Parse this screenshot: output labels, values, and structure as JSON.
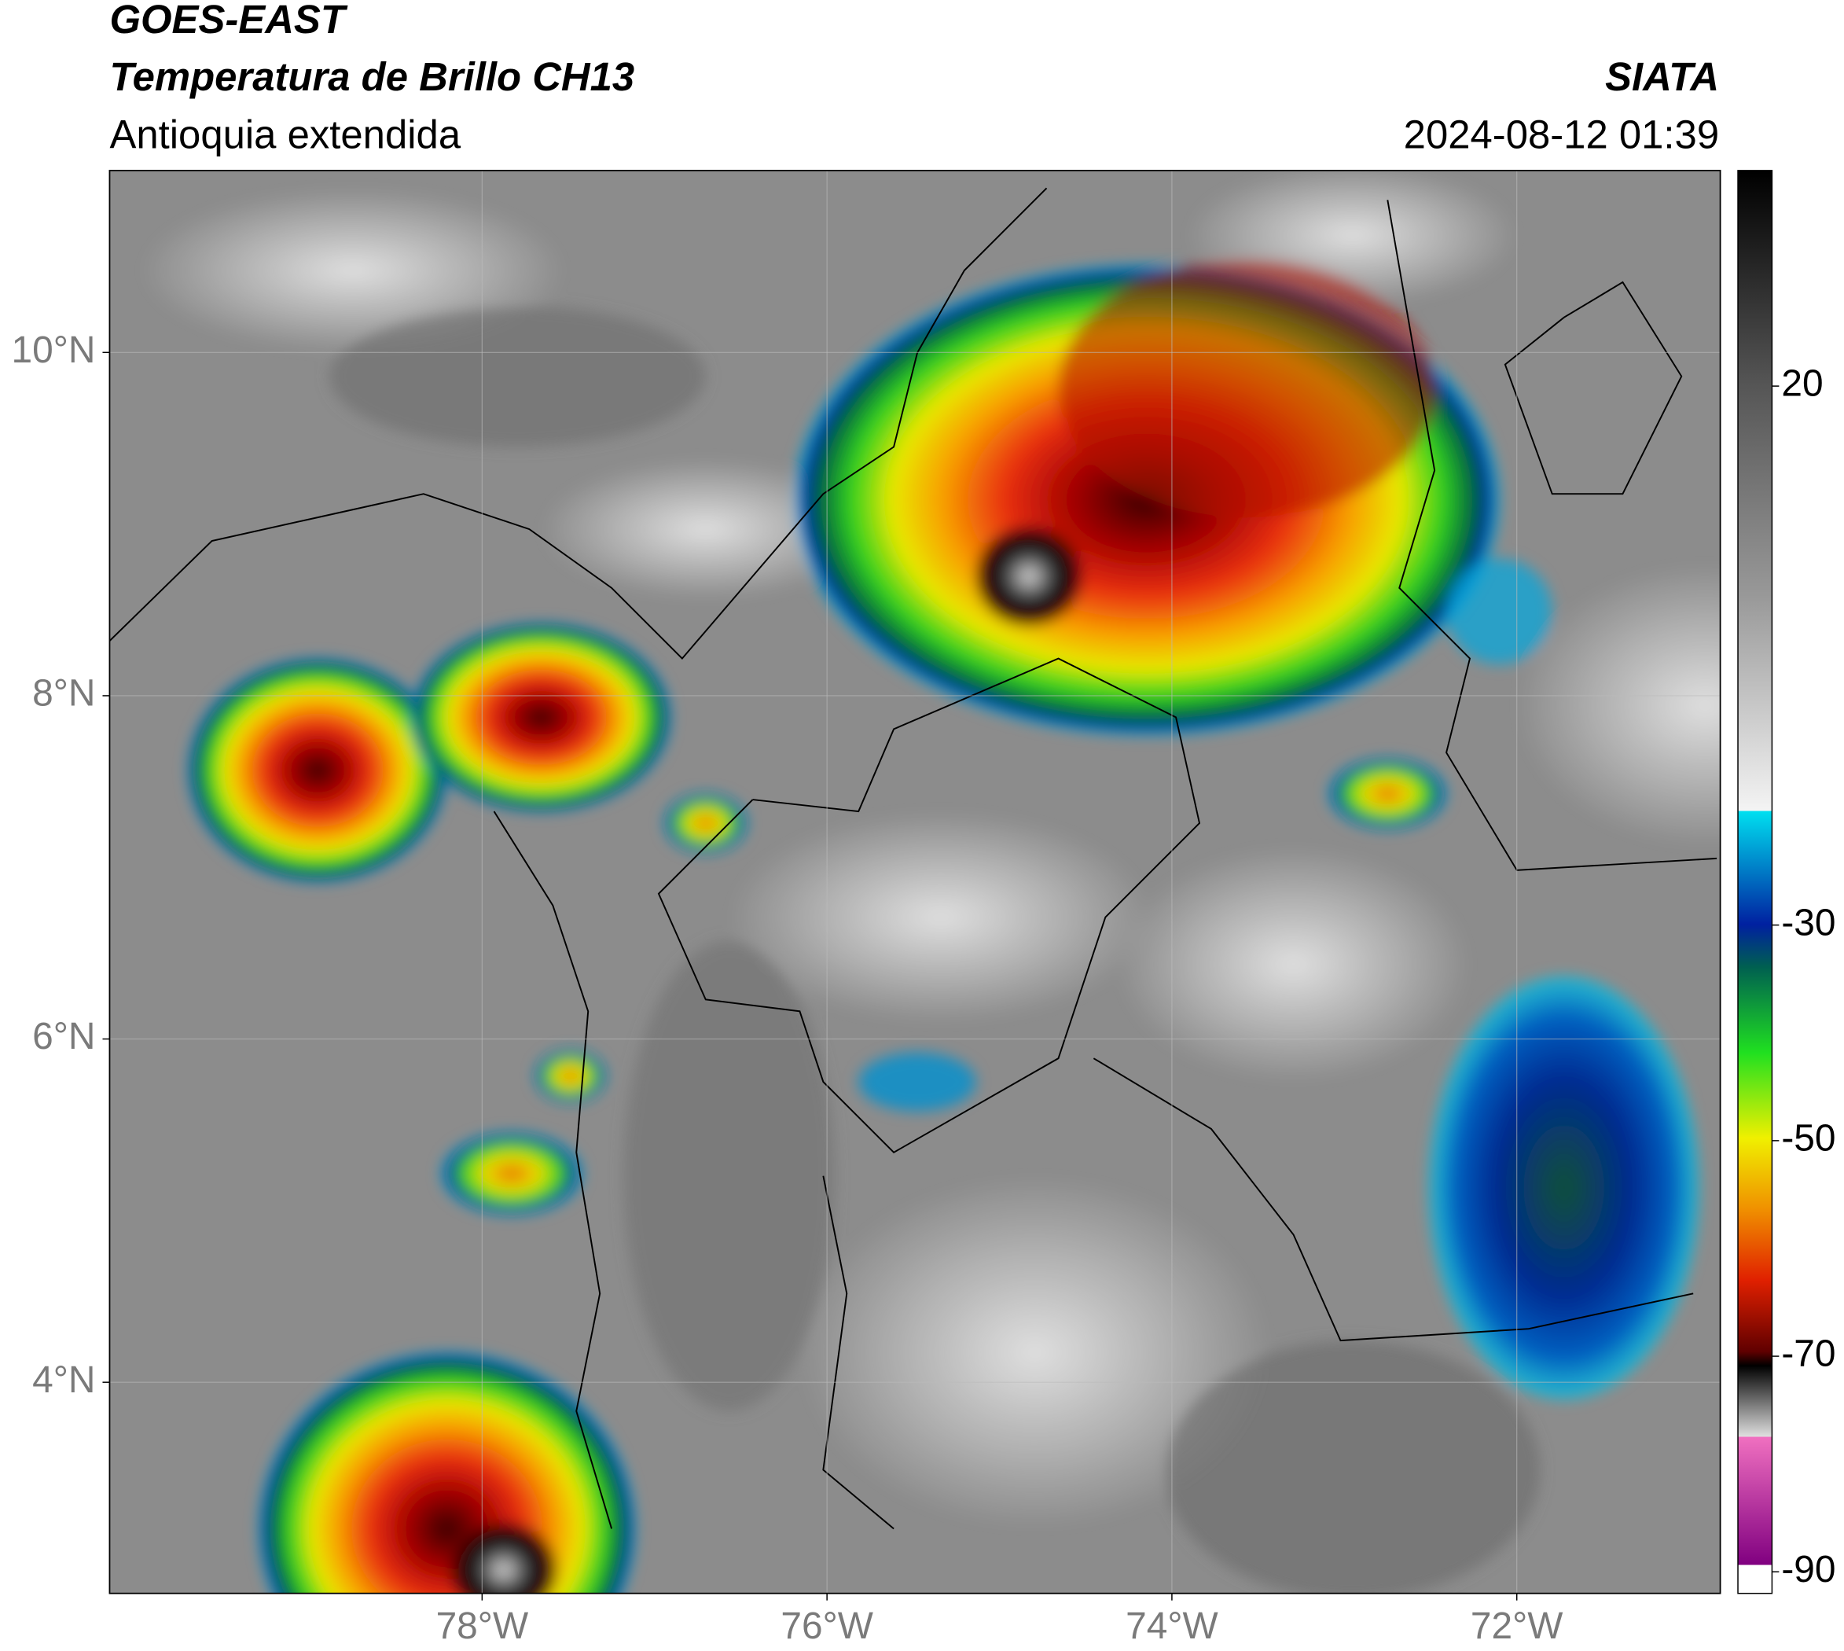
{
  "header": {
    "title": "GOES-EAST",
    "subtitle": "Temperatura de Brillo CH13",
    "region": "Antioquia extendida",
    "source": "SIATA",
    "timestamp": "2024-08-12 01:39"
  },
  "map": {
    "xlim": [
      -80.16,
      -70.82
    ],
    "ylim": [
      2.77,
      11.06
    ],
    "xticks": [
      {
        "value": -78,
        "label": "78°W"
      },
      {
        "value": -76,
        "label": "76°W"
      },
      {
        "value": -74,
        "label": "74°W"
      },
      {
        "value": -72,
        "label": "72°W"
      }
    ],
    "yticks": [
      {
        "value": 10,
        "label": "10°N"
      },
      {
        "value": 8,
        "label": "8°N"
      },
      {
        "value": 6,
        "label": "6°N"
      },
      {
        "value": 4,
        "label": "4°N"
      }
    ],
    "grid": true
  },
  "colorbar": {
    "lim": [
      -92,
      40
    ],
    "ticks": [
      20,
      -30,
      -50,
      -70,
      -90
    ]
  }
}
